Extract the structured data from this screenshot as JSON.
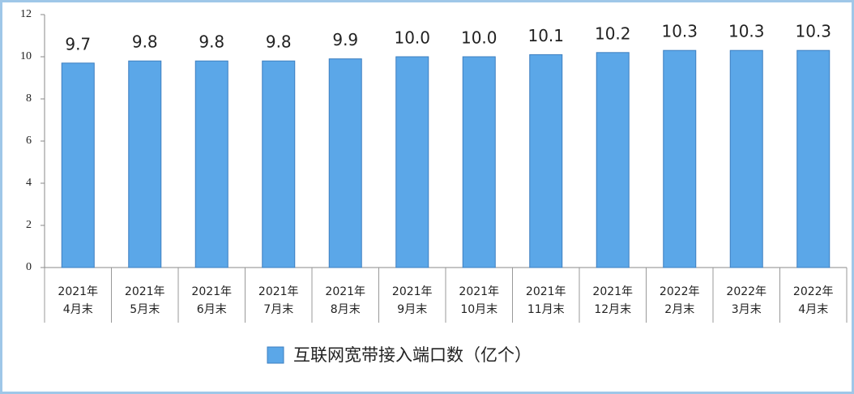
{
  "chart_data": {
    "type": "bar",
    "categories": [
      [
        "2021年",
        "4月末"
      ],
      [
        "2021年",
        "5月末"
      ],
      [
        "2021年",
        "6月末"
      ],
      [
        "2021年",
        "7月末"
      ],
      [
        "2021年",
        "8月末"
      ],
      [
        "2021年",
        "9月末"
      ],
      [
        "2021年",
        "10月末"
      ],
      [
        "2021年",
        "11月末"
      ],
      [
        "2021年",
        "12月末"
      ],
      [
        "2022年",
        "2月末"
      ],
      [
        "2022年",
        "3月末"
      ],
      [
        "2022年",
        "4月末"
      ]
    ],
    "series": [
      {
        "name": "互联网宽带接入端口数（亿个）",
        "color": "#5ba7e8",
        "values": [
          9.7,
          9.8,
          9.8,
          9.8,
          9.9,
          10.0,
          10.0,
          10.1,
          10.2,
          10.3,
          10.3,
          10.3
        ],
        "value_labels": [
          "9.7",
          "9.8",
          "9.8",
          "9.8",
          "9.9",
          "10.0",
          "10.0",
          "10.1",
          "10.2",
          "10.3",
          "10.3",
          "10.3"
        ]
      }
    ],
    "ylim": [
      0,
      12
    ],
    "yticks": [
      0,
      2,
      4,
      6,
      8,
      10,
      12
    ],
    "legend": "bottom"
  }
}
